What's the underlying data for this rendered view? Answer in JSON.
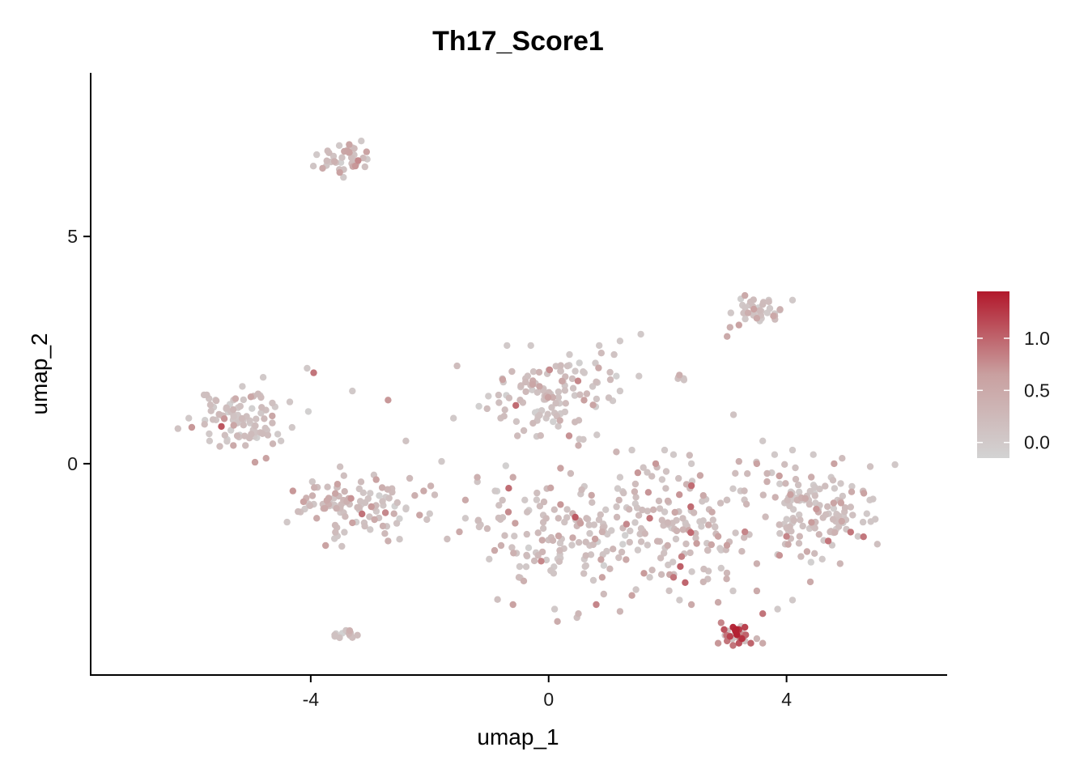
{
  "chart_data": {
    "type": "scatter",
    "title": "Th17_Score1",
    "xlabel": "umap_1",
    "ylabel": "umap_2",
    "xlim": [
      -7.7,
      6.7
    ],
    "ylim": [
      -4.65,
      8.6
    ],
    "xticks": [
      -4,
      0,
      4
    ],
    "yticks": [
      0,
      5
    ],
    "grid": false,
    "color_scale": {
      "low_color": "#d3d3d3",
      "high_color": "#b2182b",
      "min": -0.15,
      "max": 1.45,
      "ticks": [
        0.0,
        0.5,
        1.0
      ],
      "tick_labels": [
        "0.0",
        "0.5",
        "1.0"
      ],
      "legend_position": "right"
    },
    "clusters": [
      {
        "center": [
          -3.5,
          6.7
        ],
        "spread": [
          0.3,
          0.22
        ],
        "count": 32,
        "mean_score": 0.45
      },
      {
        "center": [
          -5.2,
          0.95
        ],
        "spread": [
          0.55,
          0.35
        ],
        "count": 85,
        "mean_score": 0.1
      },
      {
        "center": [
          -3.2,
          -0.85
        ],
        "spread": [
          0.7,
          0.5
        ],
        "count": 95,
        "mean_score": 0.35
      },
      {
        "center": [
          -3.45,
          -3.75
        ],
        "spread": [
          0.12,
          0.06
        ],
        "count": 16,
        "mean_score": 0.05
      },
      {
        "center": [
          0.0,
          1.5
        ],
        "spread": [
          0.8,
          0.55
        ],
        "count": 115,
        "mean_score": 0.25
      },
      {
        "center": [
          0.3,
          -1.5
        ],
        "spread": [
          1.0,
          0.8
        ],
        "count": 125,
        "mean_score": 0.3
      },
      {
        "center": [
          2.1,
          -1.3
        ],
        "spread": [
          1.0,
          0.85
        ],
        "count": 135,
        "mean_score": 0.32
      },
      {
        "center": [
          4.4,
          -1.0
        ],
        "spread": [
          0.65,
          0.7
        ],
        "count": 120,
        "mean_score": 0.35
      },
      {
        "center": [
          3.55,
          3.35
        ],
        "spread": [
          0.3,
          0.18
        ],
        "count": 30,
        "mean_score": 0.3
      },
      {
        "center": [
          2.25,
          1.85
        ],
        "spread": [
          0.06,
          0.06
        ],
        "count": 5,
        "mean_score": 0.05
      },
      {
        "center": [
          3.15,
          -3.75
        ],
        "spread": [
          0.14,
          0.1
        ],
        "count": 22,
        "mean_score": 1.1
      }
    ],
    "points": [
      [
        -4.06,
        2.1,
        0.0
      ],
      [
        -3.52,
        7.0,
        0.0
      ],
      [
        -3.05,
        6.7,
        0.0
      ],
      [
        -6.05,
        1.0,
        0.0
      ],
      [
        -5.7,
        0.5,
        0.0
      ],
      [
        -4.8,
        1.9,
        0.0
      ],
      [
        -3.95,
        2.0,
        0.9
      ],
      [
        -3.3,
        1.6,
        0.0
      ],
      [
        -1.6,
        1.0,
        0.0
      ],
      [
        -1.8,
        0.05,
        0.0
      ],
      [
        -1.5,
        -1.5,
        0.5
      ],
      [
        -2.0,
        -1.1,
        0.0
      ],
      [
        -2.4,
        0.5,
        0.1
      ],
      [
        -2.7,
        1.4,
        0.7
      ],
      [
        -4.3,
        -0.6,
        0.7
      ],
      [
        -4.1,
        -1.0,
        0.0
      ],
      [
        -2.1,
        -0.6,
        0.5
      ],
      [
        -4.75,
        0.12,
        0.6
      ],
      [
        -3.75,
        -1.8,
        0.6
      ],
      [
        -2.7,
        -1.7,
        0.4
      ],
      [
        -0.7,
        2.6,
        0.0
      ],
      [
        -0.3,
        2.6,
        0.0
      ],
      [
        0.35,
        2.4,
        0.0
      ],
      [
        0.85,
        2.6,
        0.0
      ],
      [
        1.2,
        2.7,
        0.0
      ],
      [
        1.55,
        2.85,
        0.0
      ],
      [
        1.1,
        2.4,
        0.1
      ],
      [
        0.6,
        2.0,
        0.0
      ],
      [
        0.8,
        1.8,
        0.2
      ],
      [
        1.2,
        1.6,
        0.0
      ],
      [
        0.2,
        1.1,
        0.0
      ],
      [
        -0.2,
        0.6,
        0.0
      ],
      [
        0.5,
        0.4,
        0.4
      ],
      [
        1.4,
        0.3,
        0.0
      ],
      [
        -0.6,
        -0.3,
        0.5
      ],
      [
        0.2,
        -0.1,
        0.6
      ],
      [
        -0.9,
        -0.6,
        0.0
      ],
      [
        -1.4,
        -0.8,
        0.5
      ],
      [
        -1.0,
        -2.1,
        0.0
      ],
      [
        -0.5,
        -2.5,
        0.2
      ],
      [
        -0.6,
        -3.1,
        0.6
      ],
      [
        0.1,
        -3.2,
        0.0
      ],
      [
        0.6,
        -2.1,
        0.0
      ],
      [
        0.5,
        -3.3,
        0.3
      ],
      [
        1.2,
        -3.25,
        0.3
      ],
      [
        0.8,
        -3.1,
        0.8
      ],
      [
        1.4,
        -2.9,
        0.6
      ],
      [
        1.7,
        -2.5,
        0.0
      ],
      [
        2.1,
        -2.5,
        0.9
      ],
      [
        2.2,
        -3.0,
        0.0
      ],
      [
        2.4,
        -3.1,
        0.5
      ],
      [
        2.6,
        -2.6,
        0.3
      ],
      [
        2.9,
        -2.3,
        0.0
      ],
      [
        2.85,
        -3.05,
        0.5
      ],
      [
        3.1,
        -2.8,
        0.0
      ],
      [
        3.5,
        -2.8,
        0.5
      ],
      [
        3.6,
        -3.3,
        0.9
      ],
      [
        3.85,
        -3.2,
        0.0
      ],
      [
        4.1,
        -3.0,
        0.0
      ],
      [
        4.4,
        -2.6,
        0.5
      ],
      [
        4.9,
        -2.2,
        0.3
      ],
      [
        5.2,
        -1.6,
        0.0
      ],
      [
        5.35,
        -1.1,
        0.0
      ],
      [
        5.4,
        -0.8,
        0.0
      ],
      [
        5.3,
        -0.65,
        0.6
      ],
      [
        4.75,
        -0.3,
        0.0
      ],
      [
        4.45,
        0.2,
        0.0
      ],
      [
        4.1,
        0.3,
        0.0
      ],
      [
        3.8,
        0.2,
        0.0
      ],
      [
        3.6,
        0.5,
        0.0
      ],
      [
        3.5,
        0.0,
        0.6
      ],
      [
        3.2,
        0.05,
        0.4
      ],
      [
        2.4,
        0.0,
        0.0
      ],
      [
        2.1,
        0.2,
        0.0
      ],
      [
        1.95,
        0.3,
        0.0
      ],
      [
        1.8,
        0.0,
        0.7
      ],
      [
        1.5,
        -0.2,
        0.7
      ],
      [
        1.2,
        -0.3,
        0.0
      ],
      [
        4.8,
        0.0,
        0.6
      ],
      [
        4.0,
        -1.6,
        0.8
      ],
      [
        4.7,
        -1.7,
        0.9
      ],
      [
        4.5,
        -1.0,
        0.7
      ],
      [
        3.3,
        -1.5,
        0.8
      ],
      [
        3.85,
        -2.0,
        0.0
      ],
      [
        3.0,
        -0.8,
        0.0
      ],
      [
        2.85,
        -1.6,
        0.6
      ],
      [
        2.0,
        -1.8,
        0.4
      ],
      [
        1.7,
        -1.2,
        0.9
      ],
      [
        0.9,
        -1.5,
        0.4
      ],
      [
        0.6,
        -0.5,
        0.0
      ],
      [
        0.2,
        -0.9,
        0.7
      ],
      [
        -0.4,
        -0.8,
        0.0
      ],
      [
        -0.8,
        -1.8,
        0.4
      ],
      [
        -1.4,
        -1.2,
        0.0
      ],
      [
        -1.2,
        -0.3,
        0.4
      ],
      [
        0.9,
        -2.5,
        0.6
      ],
      [
        1.5,
        -1.9,
        0.0
      ],
      [
        2.3,
        -1.3,
        0.0
      ],
      [
        2.6,
        -0.7,
        0.5
      ],
      [
        3.1,
        -0.55,
        0.0
      ],
      [
        3.75,
        -0.2,
        0.0
      ],
      [
        4.3,
        -0.8,
        0.0
      ],
      [
        4.1,
        -1.3,
        0.0
      ],
      [
        4.95,
        -1.3,
        0.0
      ],
      [
        5.1,
        -0.5,
        0.0
      ],
      [
        4.6,
        -2.1,
        0.0
      ],
      [
        3.5,
        -2.2,
        0.4
      ],
      [
        2.9,
        -1.9,
        0.0
      ],
      [
        -5.15,
        1.7,
        0.0
      ],
      [
        -4.6,
        1.25,
        0.0
      ],
      [
        -4.95,
        0.6,
        0.0
      ],
      [
        -5.6,
        1.4,
        0.0
      ],
      [
        -6.0,
        0.8,
        0.7
      ],
      [
        -4.5,
        0.5,
        0.0
      ],
      [
        -5.3,
        0.4,
        0.5
      ],
      [
        -4.85,
        1.5,
        0.0
      ],
      [
        -3.55,
        -0.45,
        0.6
      ],
      [
        -3.0,
        -0.65,
        0.0
      ],
      [
        -2.6,
        -1.1,
        0.4
      ],
      [
        -3.3,
        -1.3,
        0.6
      ],
      [
        -3.9,
        -1.2,
        0.5
      ],
      [
        -2.9,
        -0.35,
        0.6
      ],
      [
        -3.15,
        -0.9,
        0.0
      ],
      [
        -2.4,
        -1.0,
        0.0
      ],
      [
        -3.6,
        -1.65,
        0.0
      ],
      [
        -2.25,
        -0.7,
        0.4
      ],
      [
        -3.7,
        -0.9,
        0.4
      ],
      [
        -3.0,
        -1.45,
        0.0
      ],
      [
        -3.35,
        6.85,
        0.6
      ],
      [
        -3.8,
        6.5,
        0.5
      ],
      [
        -3.25,
        6.55,
        0.7
      ],
      [
        -3.6,
        6.65,
        0.4
      ],
      [
        -3.9,
        6.8,
        0.0
      ],
      [
        -3.15,
        7.1,
        0.0
      ],
      [
        -3.45,
        6.3,
        0.0
      ],
      [
        3.3,
        3.7,
        0.5
      ],
      [
        3.45,
        3.4,
        0.6
      ],
      [
        3.7,
        3.6,
        0.0
      ],
      [
        3.5,
        3.2,
        0.5
      ],
      [
        3.05,
        3.0,
        0.4
      ],
      [
        3.8,
        3.3,
        0.0
      ],
      [
        3.0,
        2.8,
        0.5
      ],
      [
        4.1,
        3.6,
        0.0
      ],
      [
        3.2,
        3.05,
        0.6
      ],
      [
        3.1,
        -3.6,
        1.35
      ],
      [
        3.2,
        -3.65,
        1.25
      ],
      [
        3.05,
        -3.8,
        1.2
      ],
      [
        3.25,
        -3.85,
        1.3
      ],
      [
        3.15,
        -3.7,
        1.4
      ],
      [
        2.95,
        -3.65,
        1.1
      ],
      [
        3.3,
        -3.6,
        1.2
      ],
      [
        3.0,
        -3.9,
        0.9
      ],
      [
        3.4,
        -3.95,
        1.0
      ],
      [
        2.85,
        -3.95,
        0.7
      ],
      [
        3.6,
        -3.95,
        0.5
      ],
      [
        3.5,
        -3.85,
        0.3
      ],
      [
        3.1,
        -4.0,
        0.9
      ],
      [
        2.9,
        -3.5,
        0.8
      ],
      [
        3.2,
        -3.95,
        1.1
      ]
    ]
  }
}
